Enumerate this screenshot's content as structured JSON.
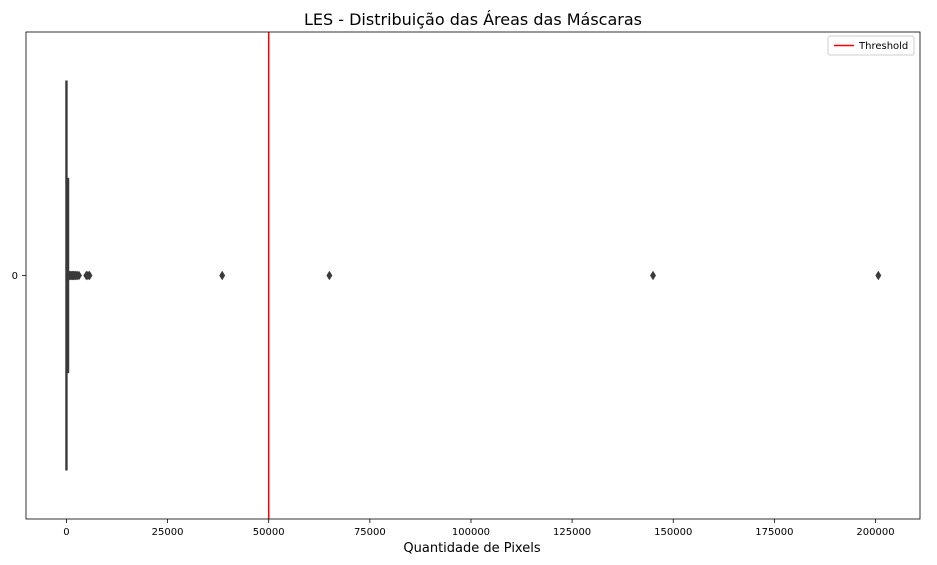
{
  "chart_data": {
    "type": "box",
    "orientation": "horizontal",
    "title": "LES - Distribuição das Áreas das Máscaras",
    "xlabel": "Quantidade de Pixels",
    "ylabel": "",
    "xlim": [
      -10000,
      211000
    ],
    "xticks": [
      0,
      25000,
      50000,
      75000,
      100000,
      125000,
      150000,
      175000,
      200000
    ],
    "xtick_labels": [
      "0",
      "25000",
      "50000",
      "75000",
      "100000",
      "125000",
      "150000",
      "175000",
      "200000"
    ],
    "categories": [
      "0"
    ],
    "box": {
      "min": 0,
      "q1": 20,
      "median": 60,
      "q3": 250,
      "max": 500
    },
    "outliers": [
      600,
      800,
      1000,
      1200,
      1400,
      1600,
      1800,
      2000,
      2200,
      2400,
      2700,
      3100,
      4900,
      5300,
      5700,
      38500,
      65000,
      145000,
      200700
    ],
    "threshold": {
      "value": 50000,
      "label": "Threshold",
      "color": "#ff0000"
    },
    "legend": {
      "position": "top-right",
      "entries": [
        "Threshold"
      ]
    },
    "box_color": "#3a3a3a",
    "grid": false
  }
}
